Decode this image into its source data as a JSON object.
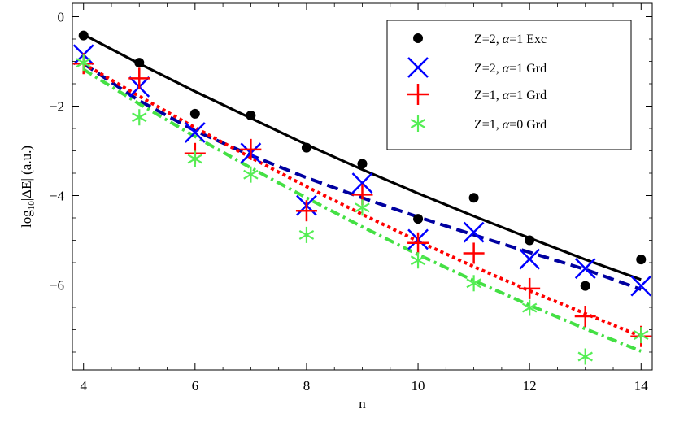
{
  "chart_data": {
    "type": "scatter",
    "title": "",
    "xlabel": "n",
    "ylabel": "log10|ΔE| (a.u.)",
    "ylabel_parts": {
      "prefix": "log",
      "subscript": "10",
      "suffix": "|ΔE| (a.u.)"
    },
    "xlim": [
      3.8,
      14.2
    ],
    "ylim": [
      -7.9,
      0.3
    ],
    "xticks": [
      4,
      6,
      8,
      10,
      12,
      14
    ],
    "yticks": [
      0,
      -2,
      -4,
      -6
    ],
    "grid": false,
    "legend_position": "top-right",
    "legend": [
      {
        "prefix": "Z=2, ",
        "alpha": "α",
        "suffix": "=1 Exc"
      },
      {
        "prefix": "Z=2, ",
        "alpha": "α",
        "suffix": "=1 Grd"
      },
      {
        "prefix": "Z=1, ",
        "alpha": "α",
        "suffix": "=1 Grd"
      },
      {
        "prefix": "Z=1, ",
        "alpha": "α",
        "suffix": "=0 Grd"
      }
    ],
    "series": [
      {
        "label": "Z=2, α=1 Exc",
        "marker": "dot",
        "color": "#000000",
        "x": [
          4,
          5,
          6,
          7,
          8,
          9,
          10,
          11,
          12,
          13,
          14
        ],
        "y": [
          -0.42,
          -1.03,
          -2.17,
          -2.21,
          -2.93,
          -3.29,
          -4.52,
          -4.05,
          -5.0,
          -6.02,
          -5.43
        ],
        "fit_style": "solid",
        "fit_x": [
          4,
          5,
          6,
          7,
          8,
          9,
          10,
          11,
          12,
          13,
          14
        ],
        "fit_y": [
          -0.4,
          -1.05,
          -1.67,
          -2.27,
          -2.86,
          -3.42,
          -3.95,
          -4.46,
          -4.95,
          -5.43,
          -5.88
        ]
      },
      {
        "label": "Z=2, α=1 Grd",
        "marker": "x",
        "color": "#0000ff",
        "fit_color": "#0000a0",
        "x": [
          4,
          5,
          6,
          7,
          8,
          9,
          10,
          11,
          12,
          13,
          14
        ],
        "y": [
          -0.85,
          -1.57,
          -2.59,
          -3.05,
          -4.22,
          -3.72,
          -4.98,
          -4.82,
          -5.42,
          -5.63,
          -6.02
        ],
        "fit_style": "dashed",
        "fit_x": [
          4,
          5,
          6,
          7,
          8,
          9,
          10,
          11,
          12,
          13,
          14
        ],
        "fit_y": [
          -1.05,
          -1.88,
          -2.55,
          -3.1,
          -3.6,
          -4.05,
          -4.48,
          -4.88,
          -5.27,
          -5.65,
          -6.1
        ]
      },
      {
        "label": "Z=1, α=1 Grd",
        "marker": "plus",
        "color": "#ff0000",
        "x": [
          4,
          5,
          6,
          7,
          8,
          9,
          10,
          11,
          12,
          13,
          14
        ],
        "y": [
          -1.05,
          -1.38,
          -3.06,
          -2.97,
          -4.34,
          -3.98,
          -5.06,
          -5.29,
          -6.08,
          -6.7,
          -7.15
        ],
        "fit_style": "dotted",
        "fit_x": [
          4,
          5,
          6,
          7,
          8,
          9,
          10,
          11,
          12,
          13,
          14
        ],
        "fit_y": [
          -1.05,
          -1.78,
          -2.48,
          -3.15,
          -3.8,
          -4.42,
          -5.02,
          -5.59,
          -6.13,
          -6.64,
          -7.15
        ]
      },
      {
        "label": "Z=1, α=0 Grd",
        "marker": "asterisk",
        "color": "#55ee55",
        "fit_color": "#44e044",
        "x": [
          4,
          5,
          6,
          7,
          8,
          9,
          10,
          11,
          12,
          13,
          14
        ],
        "y": [
          -1.03,
          -2.25,
          -3.18,
          -3.53,
          -4.88,
          -4.27,
          -5.45,
          -5.96,
          -6.51,
          -7.6,
          -7.12
        ],
        "fit_style": "dashdot",
        "fit_x": [
          4,
          5,
          6,
          7,
          8,
          9,
          10,
          11,
          12,
          13,
          14
        ],
        "fit_y": [
          -1.18,
          -1.95,
          -2.68,
          -3.38,
          -4.05,
          -4.7,
          -5.32,
          -5.9,
          -6.45,
          -6.98,
          -7.48
        ]
      }
    ]
  }
}
